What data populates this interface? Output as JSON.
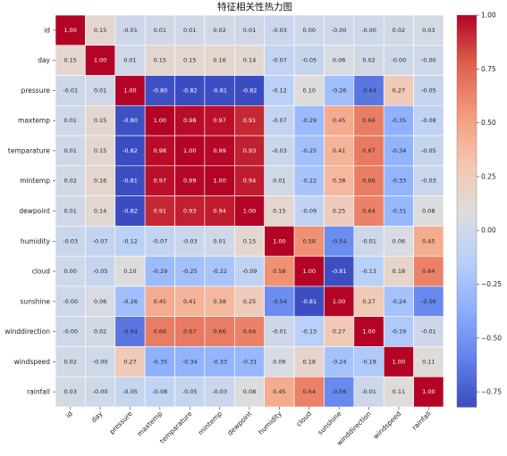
{
  "chart_data": {
    "type": "heatmap",
    "title": "特征相关性热力图",
    "labels": [
      "id",
      "day",
      "pressure",
      "maxtemp",
      "temparature",
      "mintemp",
      "dewpoint",
      "humidity",
      "cloud",
      "sunshine",
      "winddirection",
      "windspeed",
      "rainfall"
    ],
    "values": [
      [
        1.0,
        0.15,
        -0.01,
        0.01,
        0.01,
        0.02,
        0.01,
        -0.03,
        0.0,
        -0.0,
        -0.0,
        0.02,
        0.03
      ],
      [
        0.15,
        1.0,
        0.01,
        0.15,
        0.15,
        0.16,
        0.14,
        -0.07,
        -0.05,
        0.06,
        0.02,
        -0.0,
        -0.0
      ],
      [
        -0.01,
        0.01,
        1.0,
        -0.8,
        -0.82,
        -0.81,
        -0.82,
        -0.12,
        0.1,
        -0.26,
        -0.64,
        0.27,
        -0.05
      ],
      [
        0.01,
        0.15,
        -0.8,
        1.0,
        0.98,
        0.97,
        0.91,
        -0.07,
        -0.29,
        0.45,
        0.66,
        -0.35,
        -0.08
      ],
      [
        0.01,
        0.15,
        -0.82,
        0.98,
        1.0,
        0.99,
        0.93,
        -0.03,
        -0.25,
        0.41,
        0.67,
        -0.34,
        -0.05
      ],
      [
        0.02,
        0.16,
        -0.81,
        0.97,
        0.99,
        1.0,
        0.94,
        0.01,
        -0.22,
        0.38,
        0.66,
        -0.33,
        -0.03
      ],
      [
        0.01,
        0.14,
        -0.82,
        0.91,
        0.93,
        0.94,
        1.0,
        0.15,
        -0.09,
        0.25,
        0.64,
        -0.31,
        0.08
      ],
      [
        -0.03,
        -0.07,
        -0.12,
        -0.07,
        -0.03,
        0.01,
        0.15,
        1.0,
        0.58,
        -0.54,
        -0.01,
        0.06,
        0.45
      ],
      [
        0.0,
        -0.05,
        0.1,
        -0.29,
        -0.25,
        -0.22,
        -0.09,
        0.58,
        1.0,
        -0.81,
        -0.13,
        0.18,
        0.64
      ],
      [
        -0.0,
        0.06,
        -0.26,
        0.45,
        0.41,
        0.38,
        0.25,
        -0.54,
        -0.81,
        1.0,
        0.27,
        -0.24,
        -0.56
      ],
      [
        -0.0,
        0.02,
        -0.64,
        0.66,
        0.67,
        0.66,
        0.64,
        -0.01,
        -0.13,
        0.27,
        1.0,
        -0.19,
        -0.01
      ],
      [
        0.02,
        -0.0,
        0.27,
        -0.35,
        -0.34,
        -0.33,
        -0.31,
        0.06,
        0.18,
        -0.24,
        -0.19,
        1.0,
        0.11
      ],
      [
        0.03,
        -0.0,
        -0.05,
        -0.08,
        -0.05,
        -0.03,
        0.08,
        0.45,
        0.64,
        -0.56,
        -0.01,
        0.11,
        1.0
      ]
    ],
    "display_text": [
      [
        "1.00",
        "0.15",
        "-0.01",
        "0.01",
        "0.01",
        "0.02",
        "0.01",
        "-0.03",
        "0.00",
        "-0.00",
        "-0.00",
        "0.02",
        "0.03"
      ],
      [
        "0.15",
        "1.00",
        "0.01",
        "0.15",
        "0.15",
        "0.16",
        "0.14",
        "-0.07",
        "-0.05",
        "0.06",
        "0.02",
        "-0.00",
        "-0.00"
      ],
      [
        "-0.01",
        "0.01",
        "1.00",
        "-0.80",
        "-0.82",
        "-0.81",
        "-0.82",
        "-0.12",
        "0.10",
        "-0.26",
        "-0.64",
        "0.27",
        "-0.05"
      ],
      [
        "0.01",
        "0.15",
        "-0.80",
        "1.00",
        "0.98",
        "0.97",
        "0.91",
        "-0.07",
        "-0.29",
        "0.45",
        "0.66",
        "-0.35",
        "-0.08"
      ],
      [
        "0.01",
        "0.15",
        "-0.82",
        "0.98",
        "1.00",
        "0.99",
        "0.93",
        "-0.03",
        "-0.25",
        "0.41",
        "0.67",
        "-0.34",
        "-0.05"
      ],
      [
        "0.02",
        "0.16",
        "-0.81",
        "0.97",
        "0.99",
        "1.00",
        "0.94",
        "0.01",
        "-0.22",
        "0.38",
        "0.66",
        "-0.33",
        "-0.03"
      ],
      [
        "0.01",
        "0.14",
        "-0.82",
        "0.91",
        "0.93",
        "0.94",
        "1.00",
        "0.15",
        "-0.09",
        "0.25",
        "0.64",
        "-0.31",
        "0.08"
      ],
      [
        "-0.03",
        "-0.07",
        "-0.12",
        "-0.07",
        "-0.03",
        "0.01",
        "0.15",
        "1.00",
        "0.58",
        "-0.54",
        "-0.01",
        "0.06",
        "0.45"
      ],
      [
        "0.00",
        "-0.05",
        "0.10",
        "-0.29",
        "-0.25",
        "-0.22",
        "-0.09",
        "0.58",
        "1.00",
        "-0.81",
        "-0.13",
        "0.18",
        "0.64"
      ],
      [
        "-0.00",
        "0.06",
        "-0.26",
        "0.45",
        "0.41",
        "0.38",
        "0.25",
        "-0.54",
        "-0.81",
        "1.00",
        "0.27",
        "-0.24",
        "-0.56"
      ],
      [
        "-0.00",
        "0.02",
        "-0.64",
        "0.66",
        "0.67",
        "0.66",
        "0.64",
        "-0.01",
        "-0.13",
        "0.27",
        "1.00",
        "-0.19",
        "-0.01"
      ],
      [
        "0.02",
        "-0.00",
        "0.27",
        "-0.35",
        "-0.34",
        "-0.33",
        "-0.31",
        "0.06",
        "0.18",
        "-0.24",
        "-0.19",
        "1.00",
        "0.11"
      ],
      [
        "0.03",
        "-0.00",
        "-0.05",
        "-0.08",
        "-0.05",
        "-0.03",
        "0.08",
        "0.45",
        "0.64",
        "-0.56",
        "-0.01",
        "0.11",
        "1.00"
      ]
    ],
    "colorbar": {
      "range": [
        -0.82,
        1.0
      ],
      "ticks": [
        -0.75,
        -0.5,
        -0.25,
        0.0,
        0.25,
        0.5,
        0.75,
        1.0
      ],
      "tick_labels": [
        "−0.75",
        "−0.50",
        "−0.25",
        "0.00",
        "0.25",
        "0.50",
        "0.75",
        "1.00"
      ]
    },
    "colormap": "coolwarm",
    "colors": {
      "low": "#3b4cc0",
      "mid": "#dddddd",
      "high": "#b40426"
    },
    "grid": true,
    "legend": "right colorbar"
  }
}
